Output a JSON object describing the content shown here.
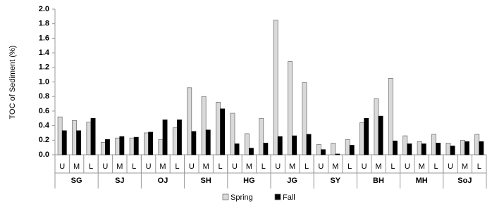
{
  "chart_data": {
    "type": "bar",
    "y_label": "TOC of Sediment (%)",
    "categories": [
      "U",
      "M",
      "L",
      "U",
      "M",
      "L",
      "U",
      "M",
      "L",
      "U",
      "M",
      "L",
      "U",
      "M",
      "L",
      "U",
      "M",
      "L",
      "U",
      "M",
      "L",
      "U",
      "M",
      "L",
      "U",
      "M",
      "L",
      "U",
      "M",
      "L"
    ],
    "groups": [
      "SG",
      "SJ",
      "OJ",
      "SH",
      "HG",
      "JG",
      "SY",
      "BH",
      "MH",
      "SoJ"
    ],
    "series": [
      {
        "name": "Spring",
        "color": "#d9d9d9",
        "values": [
          0.52,
          0.47,
          0.45,
          0.17,
          0.23,
          0.23,
          0.3,
          0.21,
          0.37,
          0.92,
          0.8,
          0.72,
          0.57,
          0.29,
          0.5,
          1.85,
          1.28,
          0.99,
          0.14,
          0.16,
          0.21,
          0.44,
          0.77,
          1.05,
          0.26,
          0.18,
          0.28,
          0.16,
          0.2,
          0.28
        ]
      },
      {
        "name": "Fall",
        "color": "#000000",
        "values": [
          0.33,
          0.33,
          0.5,
          0.21,
          0.25,
          0.24,
          0.31,
          0.48,
          0.48,
          0.32,
          0.34,
          0.63,
          0.15,
          0.09,
          0.16,
          0.25,
          0.26,
          0.28,
          0.07,
          0.01,
          0.13,
          0.5,
          0.53,
          0.19,
          0.15,
          0.15,
          0.16,
          0.12,
          0.18,
          0.18
        ]
      }
    ],
    "ylim": [
      0,
      2
    ],
    "yticks": [
      {
        "value": 0,
        "label": "0.0"
      },
      0.2,
      0.4,
      0.6,
      0.8,
      {
        "value": 1,
        "label": "1.0"
      },
      1.2,
      1.4,
      1.6,
      1.8,
      {
        "value": 2,
        "label": "2.0"
      }
    ],
    "legend": "bottom"
  }
}
